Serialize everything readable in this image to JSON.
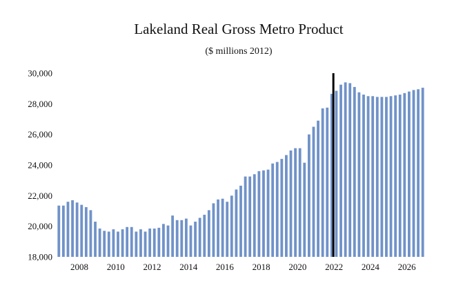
{
  "chart_data": {
    "type": "bar",
    "title": "Lakeland Real Gross Metro Product",
    "subtitle": "($ millions 2012)",
    "xlabel": "",
    "ylabel": "",
    "ylim": [
      18000,
      30000
    ],
    "y_ticks": [
      18000,
      20000,
      22000,
      24000,
      26000,
      28000,
      30000
    ],
    "y_tick_labels": [
      "18,000",
      "20,000",
      "22,000",
      "24,000",
      "26,000",
      "28,000",
      "30,000"
    ],
    "x_tick_labels": [
      "2008",
      "2010",
      "2012",
      "2014",
      "2016",
      "2018",
      "2020",
      "2022",
      "2024",
      "2026"
    ],
    "x_tick_years": [
      2008,
      2010,
      2012,
      2014,
      2016,
      2018,
      2020,
      2022,
      2024,
      2026
    ],
    "frequency": "quarterly",
    "start_period": "2006Q4",
    "forecast_marker_period": "2022Q1",
    "bar_color": "#7092c8",
    "marker_color": "#000000",
    "values": [
      21350,
      21350,
      21600,
      21700,
      21550,
      21400,
      21250,
      21050,
      20300,
      19850,
      19700,
      19650,
      19800,
      19650,
      19800,
      19950,
      19950,
      19650,
      19800,
      19650,
      19850,
      19850,
      19900,
      20150,
      20050,
      20700,
      20400,
      20400,
      20500,
      20050,
      20300,
      20550,
      20750,
      21050,
      21500,
      21750,
      21800,
      21600,
      22000,
      22400,
      22650,
      23250,
      23250,
      23400,
      23600,
      23650,
      23700,
      24100,
      24200,
      24400,
      24650,
      24950,
      25100,
      25100,
      24150,
      26000,
      26500,
      26900,
      27700,
      27750,
      28650,
      28850,
      29250,
      29400,
      29350,
      29100,
      28750,
      28600,
      28500,
      28500,
      28450,
      28450,
      28450,
      28500,
      28550,
      28600,
      28700,
      28800,
      28900,
      28950,
      29050
    ]
  }
}
